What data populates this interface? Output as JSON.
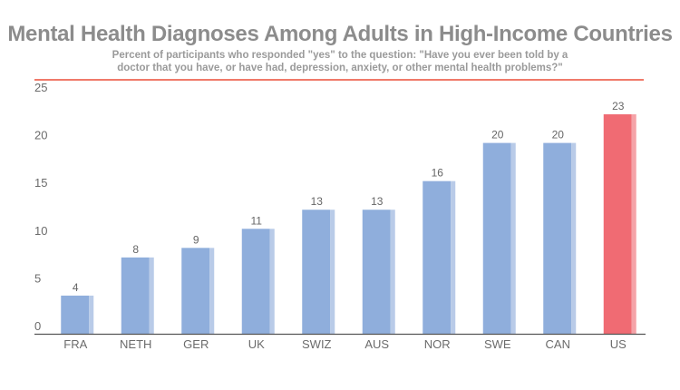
{
  "colors": {
    "bar": "#8faedc",
    "bar_shade": "#b9cbe8",
    "highlight": "#f06b73",
    "highlight_shade": "#f5a3a8",
    "rule": "#f07a6a",
    "axis": "#555555"
  },
  "chart_data": {
    "type": "bar",
    "title": "Mental Health Diagnoses Among Adults in High-Income Countries",
    "subtitle": "Percent of participants who responded \"yes\" to the question: \"Have you ever been told by a doctor that you have, or have had, depression, anxiety, or other mental health problems?\"",
    "categories": [
      "FRA",
      "NETH",
      "GER",
      "UK",
      "SWIZ",
      "AUS",
      "NOR",
      "SWE",
      "CAN",
      "US"
    ],
    "values": [
      4,
      8,
      9,
      11,
      13,
      13,
      16,
      20,
      20,
      23
    ],
    "highlight": "US",
    "yticks": [
      0,
      5,
      10,
      15,
      20,
      25
    ],
    "ylim": [
      0,
      25
    ],
    "xlabel": "",
    "ylabel": "",
    "grid": false,
    "legend": "none"
  }
}
